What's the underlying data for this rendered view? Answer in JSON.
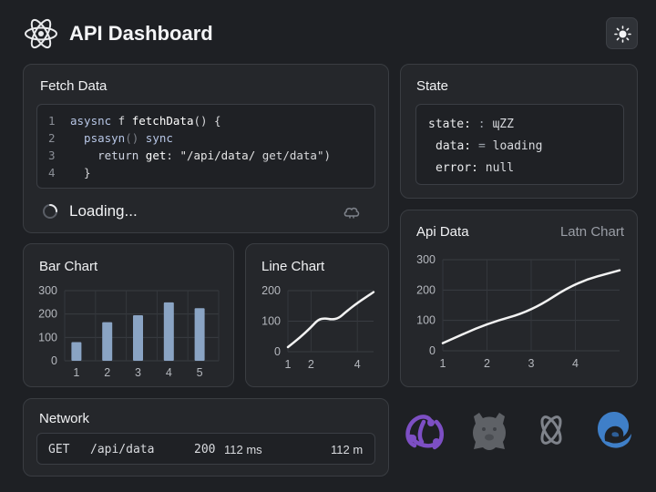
{
  "header": {
    "title": "API Dashboard",
    "logo_icon": "react-atom-icon",
    "theme_icon": "sun-icon"
  },
  "fetch_panel": {
    "title": "Fetch Data",
    "code_lines": [
      {
        "num": "1",
        "tokens": [
          {
            "t": "asysnc",
            "c": "#b7c6e6"
          },
          {
            "t": " f ",
            "c": "#d8d9dc"
          },
          {
            "t": "fetchData",
            "c": "#ffffff"
          },
          {
            "t": "() {",
            "c": "#d8d9dc"
          }
        ]
      },
      {
        "num": "2",
        "tokens": [
          {
            "t": "  psasyn",
            "c": "#b7c6e6"
          },
          {
            "t": "() ",
            "c": "#7c8088"
          },
          {
            "t": "sync",
            "c": "#b7c6e6"
          }
        ]
      },
      {
        "num": "3",
        "tokens": [
          {
            "t": "    return ",
            "c": "#cfd5e2"
          },
          {
            "t": "get",
            "c": "#ffffff"
          },
          {
            "t": ": ",
            "c": "#d8d9dc"
          },
          {
            "t": "\"/api/data/ ",
            "c": "#e6e6e6"
          },
          {
            "t": "get/data\")",
            "c": "#d8d9dc"
          }
        ]
      },
      {
        "num": "4",
        "tokens": [
          {
            "t": "  }",
            "c": "#d8d9dc"
          }
        ]
      }
    ],
    "status_text": "Loading...",
    "spinner_icon": "spinner-icon",
    "cloud_icon": "cloud-icon"
  },
  "state_panel": {
    "title": "State",
    "lines": [
      {
        "key": "state:",
        "sep": " : ",
        "value": "ɰZZ"
      },
      {
        "key": "data:",
        "sep": " = ",
        "value": "loading"
      },
      {
        "key": "error:",
        "sep": " ",
        "value": "null"
      }
    ]
  },
  "api_panel": {
    "title": "Api Data",
    "subtitle": "Latn Chart"
  },
  "bar_panel": {
    "title": "Bar Chart"
  },
  "line_panel": {
    "title": "Line Chart"
  },
  "network_panel": {
    "title": "Network",
    "row": {
      "method": "GET",
      "url": "/api/data",
      "status": "200",
      "time": "112 ms",
      "size": "112 m"
    }
  },
  "logos": [
    "redux-icon",
    "bear-icon",
    "react-query-icon",
    "swr-icon"
  ],
  "colors": {
    "background": "#1e2024",
    "panel": "#25272b",
    "bar": "#8aa4c4",
    "line": "#f2f2f2",
    "redux": "#764abc",
    "swr": "#3a78c4"
  },
  "chart_data": [
    {
      "type": "bar",
      "title": "Bar Chart",
      "categories": [
        "1",
        "2",
        "3",
        "4",
        "5"
      ],
      "values": [
        80,
        165,
        195,
        250,
        225
      ],
      "ylim": [
        0,
        300
      ],
      "yticks": [
        "0",
        "100",
        "200",
        "300"
      ],
      "grid": true
    },
    {
      "type": "line",
      "title": "Line Chart",
      "x": [
        1,
        1.5,
        2,
        2.3,
        2.6,
        2.9,
        3.2,
        3.5,
        4,
        4.7
      ],
      "values": [
        15,
        45,
        80,
        105,
        110,
        105,
        110,
        130,
        160,
        195
      ],
      "xlim": [
        1,
        4.7
      ],
      "xticks": [
        "1",
        "2",
        "4"
      ],
      "xtick_positions": [
        1,
        2,
        4
      ],
      "ylim": [
        0,
        200
      ],
      "yticks": [
        "0",
        "100",
        "200"
      ],
      "grid": true
    },
    {
      "type": "line",
      "title": "Api Data",
      "subtitle": "Latn Chart",
      "x": [
        1,
        2,
        3,
        4,
        5
      ],
      "values": [
        25,
        90,
        130,
        225,
        265
      ],
      "xlim": [
        1,
        5
      ],
      "xticks": [
        "1",
        "2",
        "3",
        "4"
      ],
      "xtick_positions": [
        1,
        2,
        3,
        4
      ],
      "ylim": [
        0,
        300
      ],
      "yticks": [
        "0",
        "100",
        "200",
        "300"
      ],
      "grid": true
    }
  ]
}
